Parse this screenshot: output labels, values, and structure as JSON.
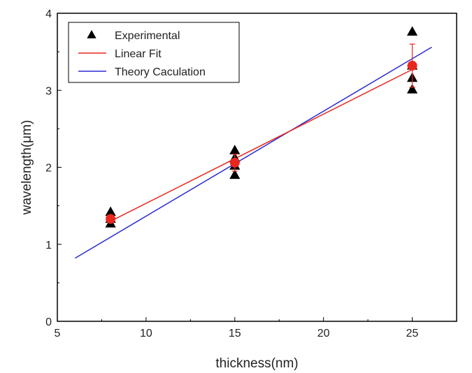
{
  "chart_data": {
    "type": "scatter",
    "title": "",
    "xlabel": "thickness(nm)",
    "ylabel": "wavelength(μm)",
    "xlim": [
      5,
      27.5
    ],
    "ylim": [
      0,
      4
    ],
    "xticks": [
      5,
      10,
      15,
      20,
      25
    ],
    "yticks": [
      0,
      1,
      2,
      3,
      4
    ],
    "grid": false,
    "legend_position": "top-left",
    "series": [
      {
        "name": "Experimental",
        "kind": "marker-triangle",
        "color": "#000000",
        "points": [
          {
            "x": 8,
            "y": 1.27
          },
          {
            "x": 8,
            "y": 1.33
          },
          {
            "x": 8,
            "y": 1.42
          },
          {
            "x": 15,
            "y": 1.9
          },
          {
            "x": 15,
            "y": 2.02
          },
          {
            "x": 15,
            "y": 2.12
          },
          {
            "x": 15,
            "y": 2.22
          },
          {
            "x": 25,
            "y": 3.01
          },
          {
            "x": 25,
            "y": 3.16
          },
          {
            "x": 25,
            "y": 3.32
          },
          {
            "x": 25,
            "y": 3.76
          }
        ]
      },
      {
        "name": "Linear Fit",
        "kind": "line",
        "color": "#e8281e",
        "points": [
          {
            "x": 8,
            "y": 1.3
          },
          {
            "x": 25,
            "y": 3.27
          }
        ]
      },
      {
        "name": "Theory Caculation",
        "kind": "line",
        "color": "#2b2bd6",
        "points": [
          {
            "x": 6,
            "y": 0.82
          },
          {
            "x": 26.1,
            "y": 3.56
          }
        ]
      }
    ],
    "mean_points": {
      "color": "#e8281e",
      "points": [
        {
          "x": 8,
          "y": 1.33,
          "err": 0.05
        },
        {
          "x": 15,
          "y": 2.06,
          "err": 0.11
        },
        {
          "x": 25,
          "y": 3.32,
          "err": 0.28
        }
      ]
    }
  }
}
